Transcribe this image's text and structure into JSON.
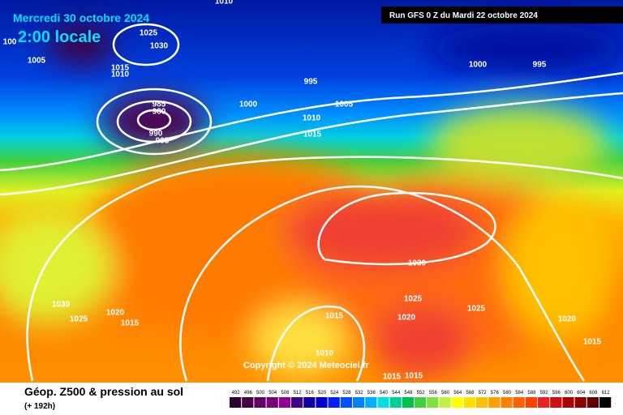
{
  "header": {
    "date": "Mercredi 30 octobre 2024",
    "time": "2:00 locale",
    "run": "Run GFS 0 Z du Mardi 22 octobre 2024"
  },
  "copyright": "Copyright © 2024 Meteociel.fr",
  "footer": {
    "title": "Géop. Z500 & pression au sol",
    "lead": "(+ 192h)"
  },
  "scale": {
    "values": [
      492,
      496,
      500,
      504,
      508,
      512,
      516,
      520,
      524,
      528,
      532,
      536,
      540,
      544,
      548,
      552,
      556,
      560,
      564,
      568,
      572,
      576,
      580,
      584,
      588,
      592,
      596,
      600,
      604,
      608,
      612
    ],
    "colors": [
      "#300030",
      "#480048",
      "#600060",
      "#780078",
      "#900090",
      "#400090",
      "#1000a0",
      "#0000d0",
      "#0020ff",
      "#0050ff",
      "#0080ff",
      "#00b0ff",
      "#00e0e0",
      "#00d090",
      "#00c050",
      "#40d040",
      "#80e040",
      "#c0f040",
      "#ffff00",
      "#ffe000",
      "#ffc000",
      "#ffa000",
      "#ff8000",
      "#ff6000",
      "#ff4000",
      "#f02020",
      "#d01010",
      "#b00000",
      "#900000",
      "#600000",
      "#000000"
    ]
  },
  "isobar_labels": [
    1010,
    1025,
    1030,
    1005,
    100,
    1015,
    1010,
    995,
    1000,
    1005,
    985,
    980,
    990,
    995,
    1010,
    1015,
    1000,
    995,
    1030,
    1030,
    1020,
    1025,
    1015,
    1025,
    1025,
    1015,
    1020,
    1020,
    1010,
    1015,
    1015,
    1015
  ]
}
